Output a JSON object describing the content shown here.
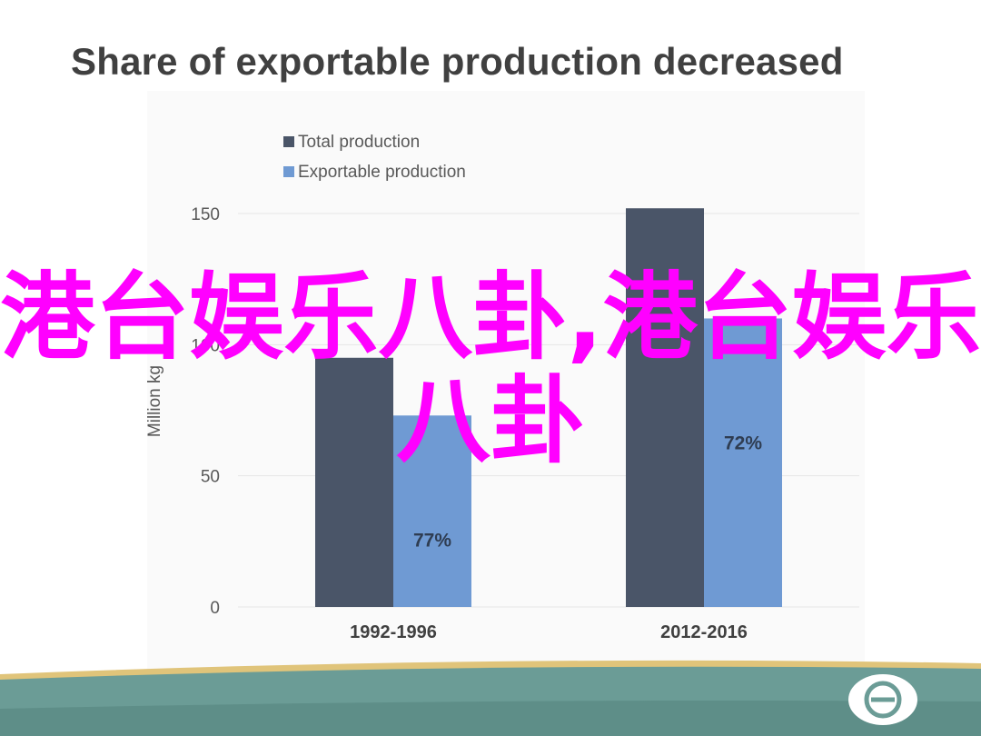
{
  "page": {
    "title": "Share of exportable production decreased"
  },
  "overlay": {
    "text": "港台娱乐八卦,港台娱乐八卦"
  },
  "colors": {
    "total": "#4a5568",
    "exportable": "#6f9ad3",
    "grid": "#e6e6e6",
    "axis_text": "#595959",
    "overlay": "#ff00ff",
    "footer_stripe": "#e0c47a",
    "footer_band": "#6b9c96",
    "footer_bottom": "#5e8e88"
  },
  "footer": {
    "logo_icon": "logo-mark-icon"
  },
  "chart_data": {
    "type": "bar",
    "title": "Share of exportable production decreased",
    "ylabel": "Million kg",
    "xlabel": "",
    "categories": [
      "1992-1996",
      "2012-2016"
    ],
    "series": [
      {
        "name": "Total production",
        "values": [
          95,
          152
        ]
      },
      {
        "name": "Exportable production",
        "values": [
          73,
          110
        ]
      }
    ],
    "data_labels": [
      "77%",
      "72%"
    ],
    "ylim": [
      0,
      150
    ],
    "yticks": [
      0,
      50,
      100,
      150
    ],
    "grid": true,
    "legend_position": "top-left"
  }
}
